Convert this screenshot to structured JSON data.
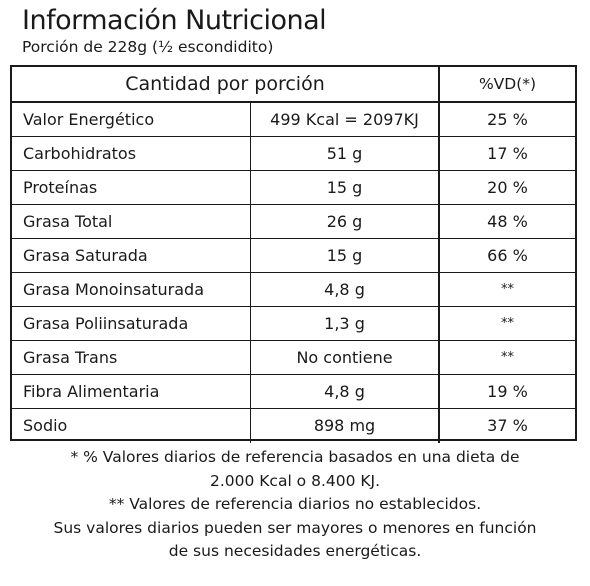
{
  "header": {
    "title": "Información Nutricional",
    "serving": "Porción de 228g (½ escondidito)"
  },
  "table": {
    "col_amount_header": "Cantidad por porción",
    "col_vd_header": "%VD(*)",
    "rows": [
      {
        "name": "Valor Energético",
        "amount": "499 Kcal = 2097KJ",
        "vd": "25 %"
      },
      {
        "name": "Carbohidratos",
        "amount": "51 g",
        "vd": "17 %"
      },
      {
        "name": "Proteínas",
        "amount": "15 g",
        "vd": "20 %"
      },
      {
        "name": "Grasa Total",
        "amount": "26 g",
        "vd": "48 %"
      },
      {
        "name": "Grasa Saturada",
        "amount": "15 g",
        "vd": "66 %"
      },
      {
        "name": "Grasa Monoinsaturada",
        "amount": "4,8 g",
        "vd": "**"
      },
      {
        "name": "Grasa Poliinsaturada",
        "amount": "1,3 g",
        "vd": "**"
      },
      {
        "name": "Grasa Trans",
        "amount": "No contiene",
        "vd": "**"
      },
      {
        "name": "Fibra Alimentaria",
        "amount": "4,8 g",
        "vd": "19 %"
      },
      {
        "name": "Sodio",
        "amount": "898 mg",
        "vd": "37 %"
      }
    ]
  },
  "footnotes": {
    "line1": "* % Valores diarios de referencia basados en una dieta de",
    "line2": "2.000 Kcal o 8.400 KJ.",
    "line3": "** Valores de referencia diarios no establecidos.",
    "line4": "Sus valores diarios pueden ser mayores o menores en función",
    "line5": "de sus necesidades energéticas."
  }
}
